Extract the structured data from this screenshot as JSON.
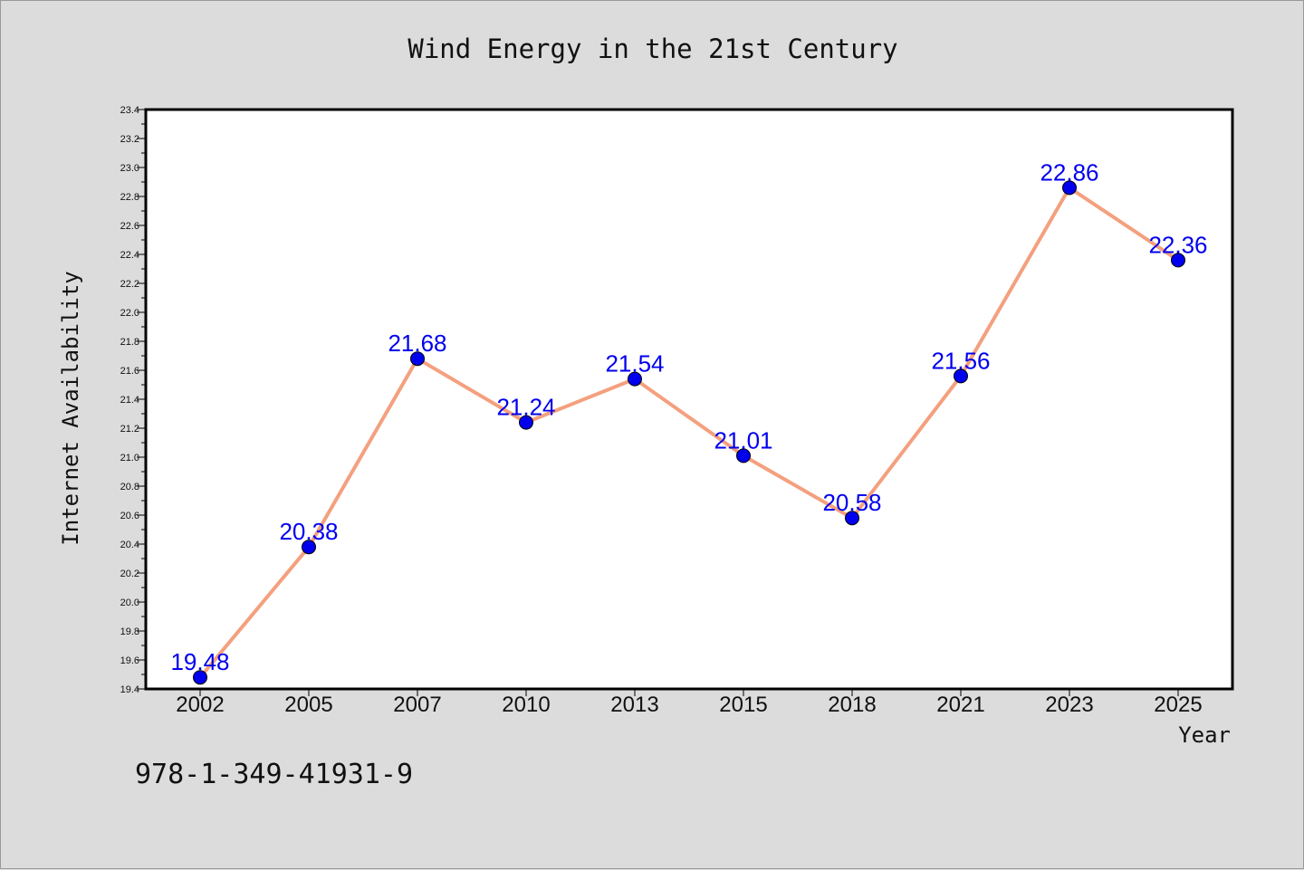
{
  "chart_data": {
    "type": "line",
    "title": "Wind Energy in the 21st Century",
    "xlabel": "Year",
    "ylabel": "Internet Availability",
    "categories": [
      "2002",
      "2005",
      "2007",
      "2010",
      "2013",
      "2015",
      "2018",
      "2021",
      "2023",
      "2025"
    ],
    "series": [
      {
        "values": [
          19.48,
          20.38,
          21.68,
          21.24,
          21.54,
          21.01,
          20.58,
          21.56,
          22.86,
          22.36
        ],
        "data_labels": [
          "19.48",
          "20.38",
          "21.68",
          "21.24",
          "21.54",
          "21.01",
          "20.58",
          "21.56",
          "22.86",
          "22.36"
        ],
        "line_color": "#f4a07e",
        "marker_color": "#0000ee"
      }
    ],
    "ylim": [
      19.4,
      23.4
    ],
    "yticks": [
      "19.4",
      "19.6",
      "19.8",
      "20.0",
      "20.2",
      "20.4",
      "20.6",
      "20.8",
      "21.0",
      "21.2",
      "21.4",
      "21.6",
      "21.8",
      "22.0",
      "22.2",
      "22.4",
      "22.6",
      "22.8",
      "23.0",
      "23.2",
      "23.4"
    ],
    "grid": false,
    "legend": "none"
  },
  "footer": {
    "isbn": "978-1-349-41931-9"
  },
  "colors": {
    "background": "#dcdcdc",
    "plot_background": "#ffffff",
    "label_color": "#0000ee"
  }
}
